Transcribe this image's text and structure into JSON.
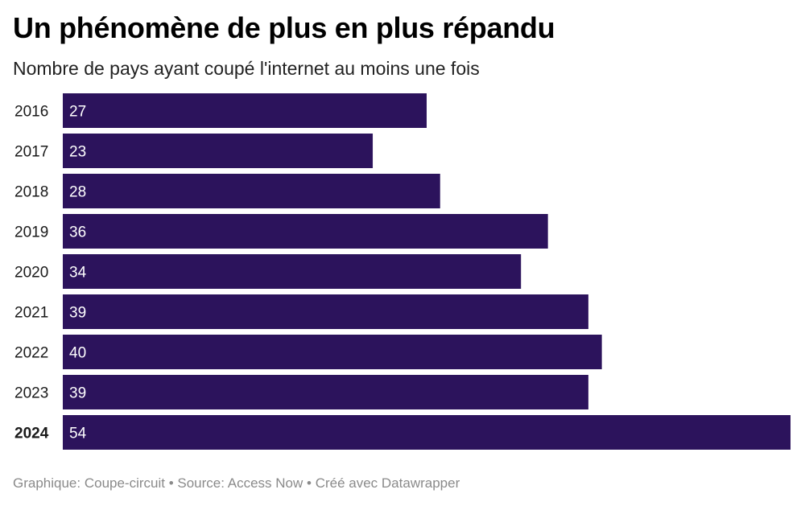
{
  "header": {
    "title": "Un phénomène de plus en plus répandu",
    "subtitle": "Nombre de pays ayant coupé l'internet au moins une fois"
  },
  "chart_data": {
    "type": "bar",
    "orientation": "horizontal",
    "categories": [
      "2016",
      "2017",
      "2018",
      "2019",
      "2020",
      "2021",
      "2022",
      "2023",
      "2024"
    ],
    "values": [
      27,
      23,
      28,
      36,
      34,
      39,
      40,
      39,
      54
    ],
    "highlight": "2024",
    "xlim": [
      0,
      54
    ],
    "bar_color": "#2c135c",
    "label_color": "#ffffff",
    "title": "Un phénomène de plus en plus répandu",
    "subtitle": "Nombre de pays ayant coupé l'internet au moins une fois"
  },
  "footer": {
    "credit": "Graphique: Coupe-circuit",
    "separator": " • ",
    "source": "Source: Access Now",
    "tool": "Créé avec Datawrapper"
  }
}
